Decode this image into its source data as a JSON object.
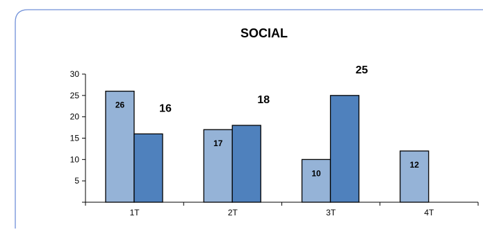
{
  "chart_data": {
    "type": "bar",
    "title": "SOCIAL",
    "xlabel": "",
    "ylabel": "",
    "categories": [
      "1T",
      "2T",
      "3T",
      "4T"
    ],
    "yticks": [
      "5",
      "10",
      "15",
      "20",
      "25",
      "30"
    ],
    "ylim": [
      0,
      30
    ],
    "grid": false,
    "legend": "none",
    "series": [
      {
        "values": [
          26,
          17,
          10,
          12
        ],
        "labels": [
          "26",
          "17",
          "10",
          "12"
        ],
        "color": "#95b3d7"
      },
      {
        "values": [
          16,
          18,
          25,
          null
        ],
        "labels": [
          "16",
          "18",
          "25",
          ""
        ],
        "color": "#4f81bd"
      }
    ],
    "frame_color": "#6f8fd8"
  }
}
